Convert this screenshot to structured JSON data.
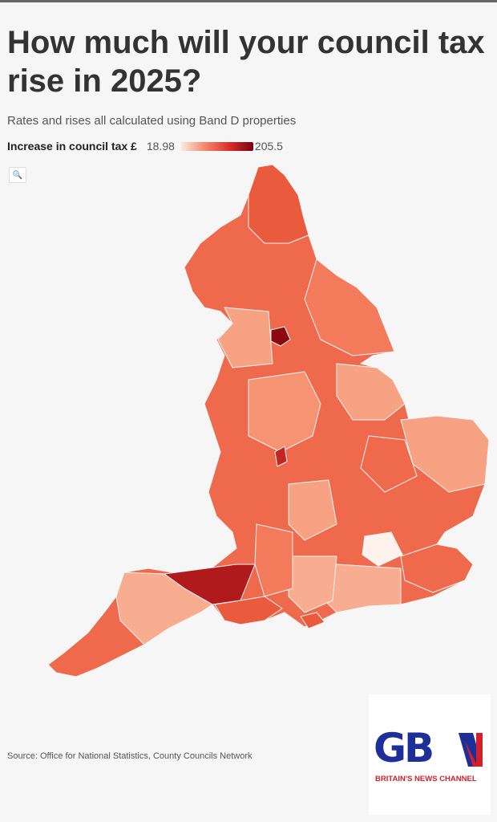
{
  "header": {
    "title": "How much will your council tax rise in 2025?",
    "subtitle": "Rates and rises all calculated using Band D properties"
  },
  "legend": {
    "label": "Increase in council tax £",
    "min": "18.98",
    "max": "205.5",
    "colors": [
      "#fde9df",
      "#f7866a",
      "#d9302a",
      "#7a0010"
    ]
  },
  "map": {
    "region": "England",
    "zoom_icon": "search-icon",
    "default_color": "#ef6a4c"
  },
  "footer": {
    "source": "Source: Office for National Statistics, County Councils Network"
  },
  "logo": {
    "text": "GBN",
    "tagline": "BRITAIN'S NEWS CHANNEL"
  }
}
